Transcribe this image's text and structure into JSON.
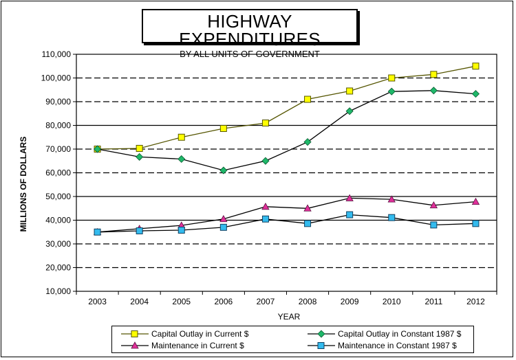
{
  "chart_data": {
    "type": "line",
    "title": "HIGHWAY EXPENDITURES",
    "subtitle": "BY ALL UNITS OF GOVERNMENT",
    "xlabel": "YEAR",
    "ylabel": "MILLIONS OF DOLLARS",
    "categories": [
      "2003",
      "2004",
      "2005",
      "2006",
      "2007",
      "2008",
      "2009",
      "2010",
      "2011",
      "2012"
    ],
    "ylim": [
      10000,
      110000
    ],
    "yticks": [
      "10,000",
      "20,000",
      "30,000",
      "40,000",
      "50,000",
      "60,000",
      "70,000",
      "80,000",
      "90,000",
      "100,000",
      "110,000"
    ],
    "grid": "horizontal; dashed at 20,000 / 30,000 / 60,000 / 70,000 / 90,000 / 100,000; solid at 40,000 / 50,000 / 80,000",
    "legend_position": "bottom",
    "series": [
      {
        "name": "Capital Outlay in Current $",
        "marker": "square",
        "color": "#ffff00",
        "line_color": "#555500",
        "values": [
          70000,
          70300,
          75000,
          78700,
          81000,
          91000,
          94500,
          100000,
          101500,
          105000
        ]
      },
      {
        "name": "Capital Outlay in Constant 1987 $",
        "marker": "diamond",
        "color": "#1fb86a",
        "line_color": "#000000",
        "values": [
          70000,
          66700,
          65800,
          61000,
          65000,
          73000,
          86000,
          94300,
          94700,
          93300
        ]
      },
      {
        "name": "Maintenance in Current $",
        "marker": "triangle",
        "color": "#e0309a",
        "line_color": "#000000",
        "values": [
          35000,
          36400,
          37800,
          40500,
          45700,
          45000,
          49300,
          48800,
          46300,
          47800
        ]
      },
      {
        "name": "Maintenance in Constant 1987 $",
        "marker": "square",
        "color": "#33bbee",
        "line_color": "#000000",
        "values": [
          35000,
          35500,
          35800,
          37000,
          40500,
          38600,
          42300,
          41100,
          38000,
          38600
        ]
      }
    ]
  }
}
